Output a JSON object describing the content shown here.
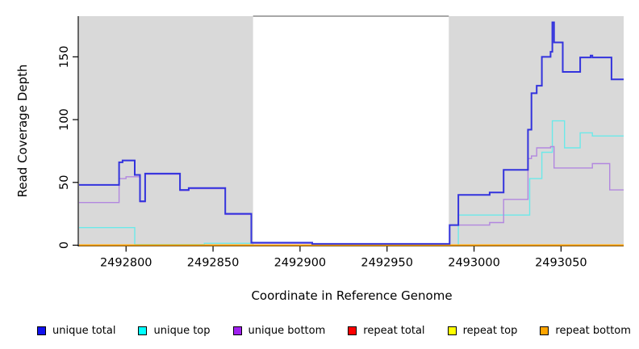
{
  "chart_data": {
    "type": "line",
    "line_style": "step-after",
    "title": "",
    "xlabel": "Coordinate in Reference Genome",
    "ylabel": "Read Coverage Depth",
    "xlim": [
      2492773,
      2493086
    ],
    "ylim": [
      0,
      182.4
    ],
    "x_ticks": [
      2492800,
      2492850,
      2492900,
      2492950,
      2493000,
      2493050
    ],
    "y_ticks": [
      0,
      50,
      100,
      150
    ],
    "grid": false,
    "legend_position": "bottom",
    "plot_bg": "#FFFFFF",
    "shaded_color": "#D9D9D9",
    "shaded_regions": [
      {
        "x0": 2492773,
        "x1": 2492873
      },
      {
        "x0": 2492985.5,
        "x1": 2493086
      }
    ],
    "series": [
      {
        "name": "unique total",
        "color": "#1111EE",
        "line_color": "#3333DD",
        "width": 2,
        "z": 6,
        "points": [
          [
            2492773,
            48
          ],
          [
            2492796,
            66
          ],
          [
            2492798,
            67.5
          ],
          [
            2492805,
            56
          ],
          [
            2492808,
            35
          ],
          [
            2492811,
            57
          ],
          [
            2492831,
            44
          ],
          [
            2492836,
            45.5
          ],
          [
            2492857,
            25
          ],
          [
            2492872,
            2
          ],
          [
            2492907,
            1
          ],
          [
            2492986,
            16
          ],
          [
            2492991,
            40
          ],
          [
            2493009,
            42
          ],
          [
            2493017,
            60
          ],
          [
            2493031,
            92
          ],
          [
            2493033,
            121
          ],
          [
            2493036,
            127
          ],
          [
            2493039,
            150
          ],
          [
            2493044,
            154
          ],
          [
            2493045,
            177.5
          ],
          [
            2493046,
            161.5
          ],
          [
            2493051,
            138
          ],
          [
            2493061,
            149.5
          ],
          [
            2493067,
            151
          ],
          [
            2493068,
            149.5
          ],
          [
            2493079,
            132
          ],
          [
            2493086,
            132
          ]
        ]
      },
      {
        "name": "unique top",
        "color": "#00FFFF",
        "line_color": "#6CE9E9",
        "width": 1.4,
        "z": 3,
        "points": [
          [
            2492773,
            14
          ],
          [
            2492805,
            0.5
          ],
          [
            2492845,
            1.5
          ],
          [
            2492873,
            0
          ],
          [
            2492991,
            24
          ],
          [
            2493032,
            53
          ],
          [
            2493039,
            74
          ],
          [
            2493045,
            99
          ],
          [
            2493052,
            77.5
          ],
          [
            2493061,
            89.5
          ],
          [
            2493068,
            87
          ],
          [
            2493086,
            87
          ]
        ]
      },
      {
        "name": "unique bottom",
        "color": "#A020F0",
        "line_color": "#B287DF",
        "width": 1.4,
        "z": 4,
        "points": [
          [
            2492773,
            34
          ],
          [
            2492796,
            53
          ],
          [
            2492800,
            54.5
          ],
          [
            2492808,
            34.5
          ],
          [
            2492811,
            56.5
          ],
          [
            2492831,
            43.5
          ],
          [
            2492836,
            45
          ],
          [
            2492857,
            24.5
          ],
          [
            2492872,
            1.5
          ],
          [
            2492907,
            1
          ],
          [
            2492986,
            16
          ],
          [
            2493009,
            18
          ],
          [
            2493017,
            36.5
          ],
          [
            2493031,
            69
          ],
          [
            2493033,
            71
          ],
          [
            2493036,
            77.5
          ],
          [
            2493044,
            78.5
          ],
          [
            2493046,
            61.5
          ],
          [
            2493068,
            65
          ],
          [
            2493078,
            44
          ],
          [
            2493086,
            44
          ]
        ]
      },
      {
        "name": "repeat total",
        "color": "#FF0000",
        "line_color": "#EE2222",
        "width": 1,
        "z": 1,
        "points": [
          [
            2492773,
            0
          ],
          [
            2493086,
            0
          ]
        ]
      },
      {
        "name": "repeat top",
        "color": "#FFFF00",
        "line_color": "#F2F200",
        "width": 1,
        "z": 2,
        "points": [
          [
            2492773,
            0
          ],
          [
            2493086,
            0
          ]
        ]
      },
      {
        "name": "repeat bottom",
        "color": "#FFA500",
        "line_color": "#FFA500",
        "width": 2,
        "z": 5,
        "points": [
          [
            2492773,
            0
          ],
          [
            2493086,
            0
          ]
        ]
      }
    ]
  },
  "legend": {
    "items": [
      {
        "label": "unique total",
        "color": "#1111EE"
      },
      {
        "label": "unique top",
        "color": "#00FFFF"
      },
      {
        "label": "unique bottom",
        "color": "#A020F0"
      },
      {
        "label": "repeat total",
        "color": "#FF0000"
      },
      {
        "label": "repeat top",
        "color": "#FFFF00"
      },
      {
        "label": "repeat bottom",
        "color": "#FFA500"
      }
    ]
  }
}
